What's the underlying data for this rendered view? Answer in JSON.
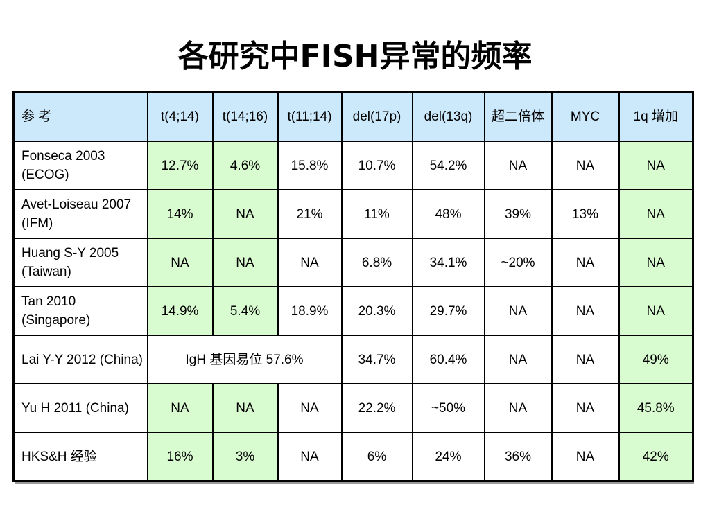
{
  "title": "各研究中FISH异常的频率",
  "table": {
    "headers": [
      "参 考",
      "t(4;14)",
      "t(14;16)",
      "t(11;14)",
      "del(17p)",
      "del(13q)",
      "超二倍体",
      "MYC",
      "1q 增加"
    ],
    "rows": [
      {
        "ref": "Fonseca 2003 (ECOG)",
        "cells": [
          "12.7%",
          "4.6%",
          "15.8%",
          "10.7%",
          "54.2%",
          "NA",
          "NA",
          "NA"
        ]
      },
      {
        "ref": "Avet-Loiseau 2007 (IFM)",
        "cells": [
          "14%",
          "NA",
          "21%",
          "11%",
          "48%",
          "39%",
          "13%",
          "NA"
        ]
      },
      {
        "ref": "Huang S-Y 2005 (Taiwan)",
        "cells": [
          "NA",
          "NA",
          "NA",
          "6.8%",
          "34.1%",
          "~20%",
          "NA",
          "NA"
        ]
      },
      {
        "ref": "Tan 2010 (Singapore)",
        "cells": [
          "14.9%",
          "5.4%",
          "18.9%",
          "20.3%",
          "29.7%",
          "NA",
          "NA",
          "NA"
        ]
      },
      {
        "ref": "Lai Y-Y 2012 (China)",
        "merged": "IgH 基因易位 57.6%",
        "cells": [
          "34.7%",
          "60.4%",
          "NA",
          "NA",
          "49%"
        ]
      },
      {
        "ref": "Yu H 2011 (China)",
        "cells": [
          "NA",
          "NA",
          "NA",
          "22.2%",
          "~50%",
          "NA",
          "NA",
          "45.8%"
        ]
      },
      {
        "ref": "HKS&H 经验",
        "cells": [
          "16%",
          "3%",
          "NA",
          "6%",
          "24%",
          "36%",
          "NA",
          "42%"
        ]
      }
    ]
  },
  "colors": {
    "header_bg": "#cce8fb",
    "highlight_bg": "#d8fbd0",
    "border": "#000000"
  }
}
